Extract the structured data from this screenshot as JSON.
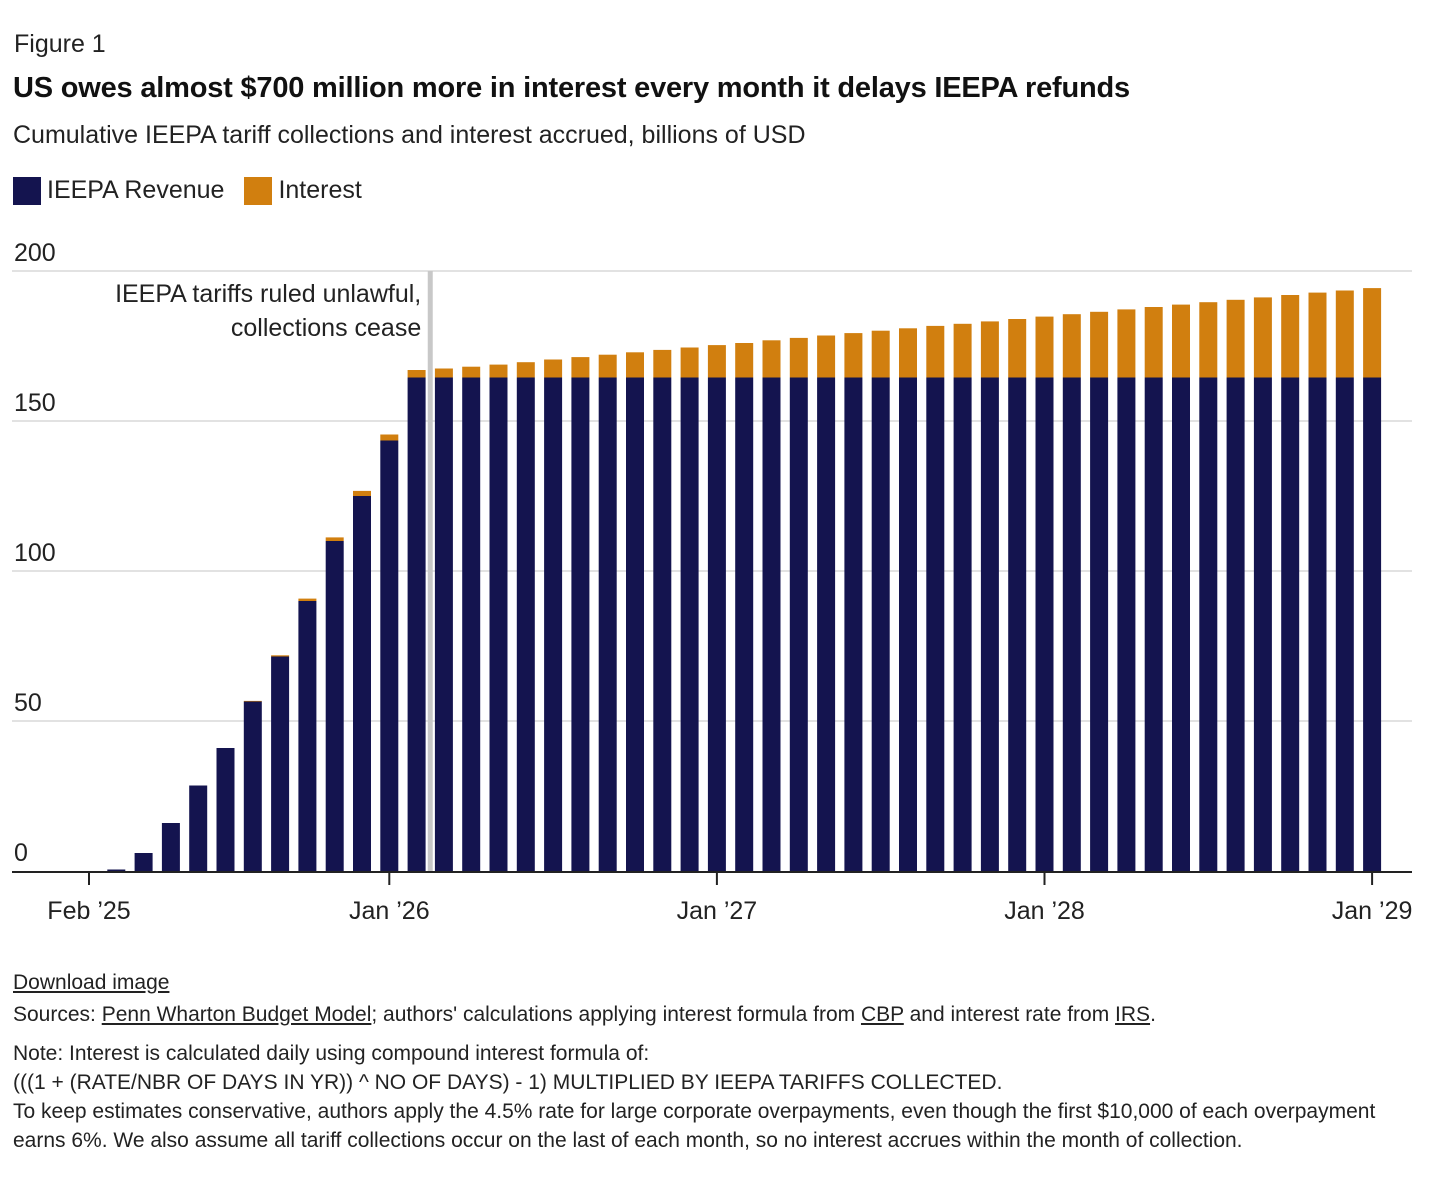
{
  "figure_label": "Figure 1",
  "title": "US owes almost $700 million more in interest every month it delays IEEPA refunds",
  "subtitle": "Cumulative IEEPA tariff collections and interest accrued, billions of USD",
  "legend": [
    {
      "label": "IEEPA Revenue",
      "color": "#14144f"
    },
    {
      "label": "Interest",
      "color": "#d17f0f"
    }
  ],
  "annotation": {
    "line1": "IEEPA tariffs ruled unlawful,",
    "line2": "collections cease"
  },
  "chart_data": {
    "type": "bar",
    "stacked": true,
    "title": "US owes almost $700 million more in interest every month it delays IEEPA refunds",
    "ylabel": "billions of USD",
    "ylim": [
      0,
      200
    ],
    "yticks": [
      0,
      50,
      100,
      150,
      200
    ],
    "x_tick_labels": [
      {
        "label": "Feb ’25",
        "index": 0
      },
      {
        "label": "Jan ’26",
        "index": 11
      },
      {
        "label": "Jan ’27",
        "index": 23
      },
      {
        "label": "Jan ’28",
        "index": 35
      },
      {
        "label": "Jan ’29",
        "index": 47
      }
    ],
    "marker_index": 12.5,
    "series": [
      {
        "name": "IEEPA Revenue",
        "color": "#14144f",
        "values": [
          0,
          0.5,
          6,
          16,
          28.5,
          41,
          56.5,
          71.5,
          90,
          110,
          125,
          143.5,
          164.5,
          164.5,
          164.5,
          164.5,
          164.5,
          164.5,
          164.5,
          164.5,
          164.5,
          164.5,
          164.5,
          164.5,
          164.5,
          164.5,
          164.5,
          164.5,
          164.5,
          164.5,
          164.5,
          164.5,
          164.5,
          164.5,
          164.5,
          164.5,
          164.5,
          164.5,
          164.5,
          164.5,
          164.5,
          164.5,
          164.5,
          164.5,
          164.5,
          164.5,
          164.5,
          164.5
        ]
      },
      {
        "name": "Interest",
        "color": "#d17f0f",
        "values": [
          0,
          0,
          0,
          0,
          0,
          0,
          0.2,
          0.4,
          0.8,
          1.2,
          1.7,
          2.0,
          2.5,
          3.0,
          3.6,
          4.3,
          5.1,
          6.0,
          6.8,
          7.6,
          8.4,
          9.2,
          10.0,
          10.8,
          11.5,
          12.4,
          13.2,
          14.0,
          14.8,
          15.6,
          16.4,
          17.2,
          17.9,
          18.7,
          19.5,
          20.3,
          21.1,
          21.9,
          22.7,
          23.5,
          24.3,
          25.1,
          25.9,
          26.7,
          27.5,
          28.3,
          29.0,
          29.8
        ]
      }
    ]
  },
  "footer": {
    "download": "Download image",
    "sources_prefix": "Sources: ",
    "source_link1": "Penn Wharton Budget Model",
    "sources_mid1": "; authors' calculations applying interest formula from ",
    "source_link2": "CBP",
    "sources_mid2": " and interest rate from ",
    "source_link3": "IRS",
    "sources_end": ".",
    "note_line1": "Note: Interest is calculated daily using compound interest formula of:",
    "note_line2": "(((1 + (RATE/NBR OF DAYS IN YR)) ^ NO OF DAYS) - 1) MULTIPLIED BY IEEPA TARIFFS COLLECTED.",
    "note_line3": "To keep estimates conservative, authors apply the 4.5% rate for large corporate overpayments, even though the first $10,000 of each overpayment earns 6%. We also assume all tariff collections occur on the last of each month, so no interest accrues within the month of collection."
  }
}
